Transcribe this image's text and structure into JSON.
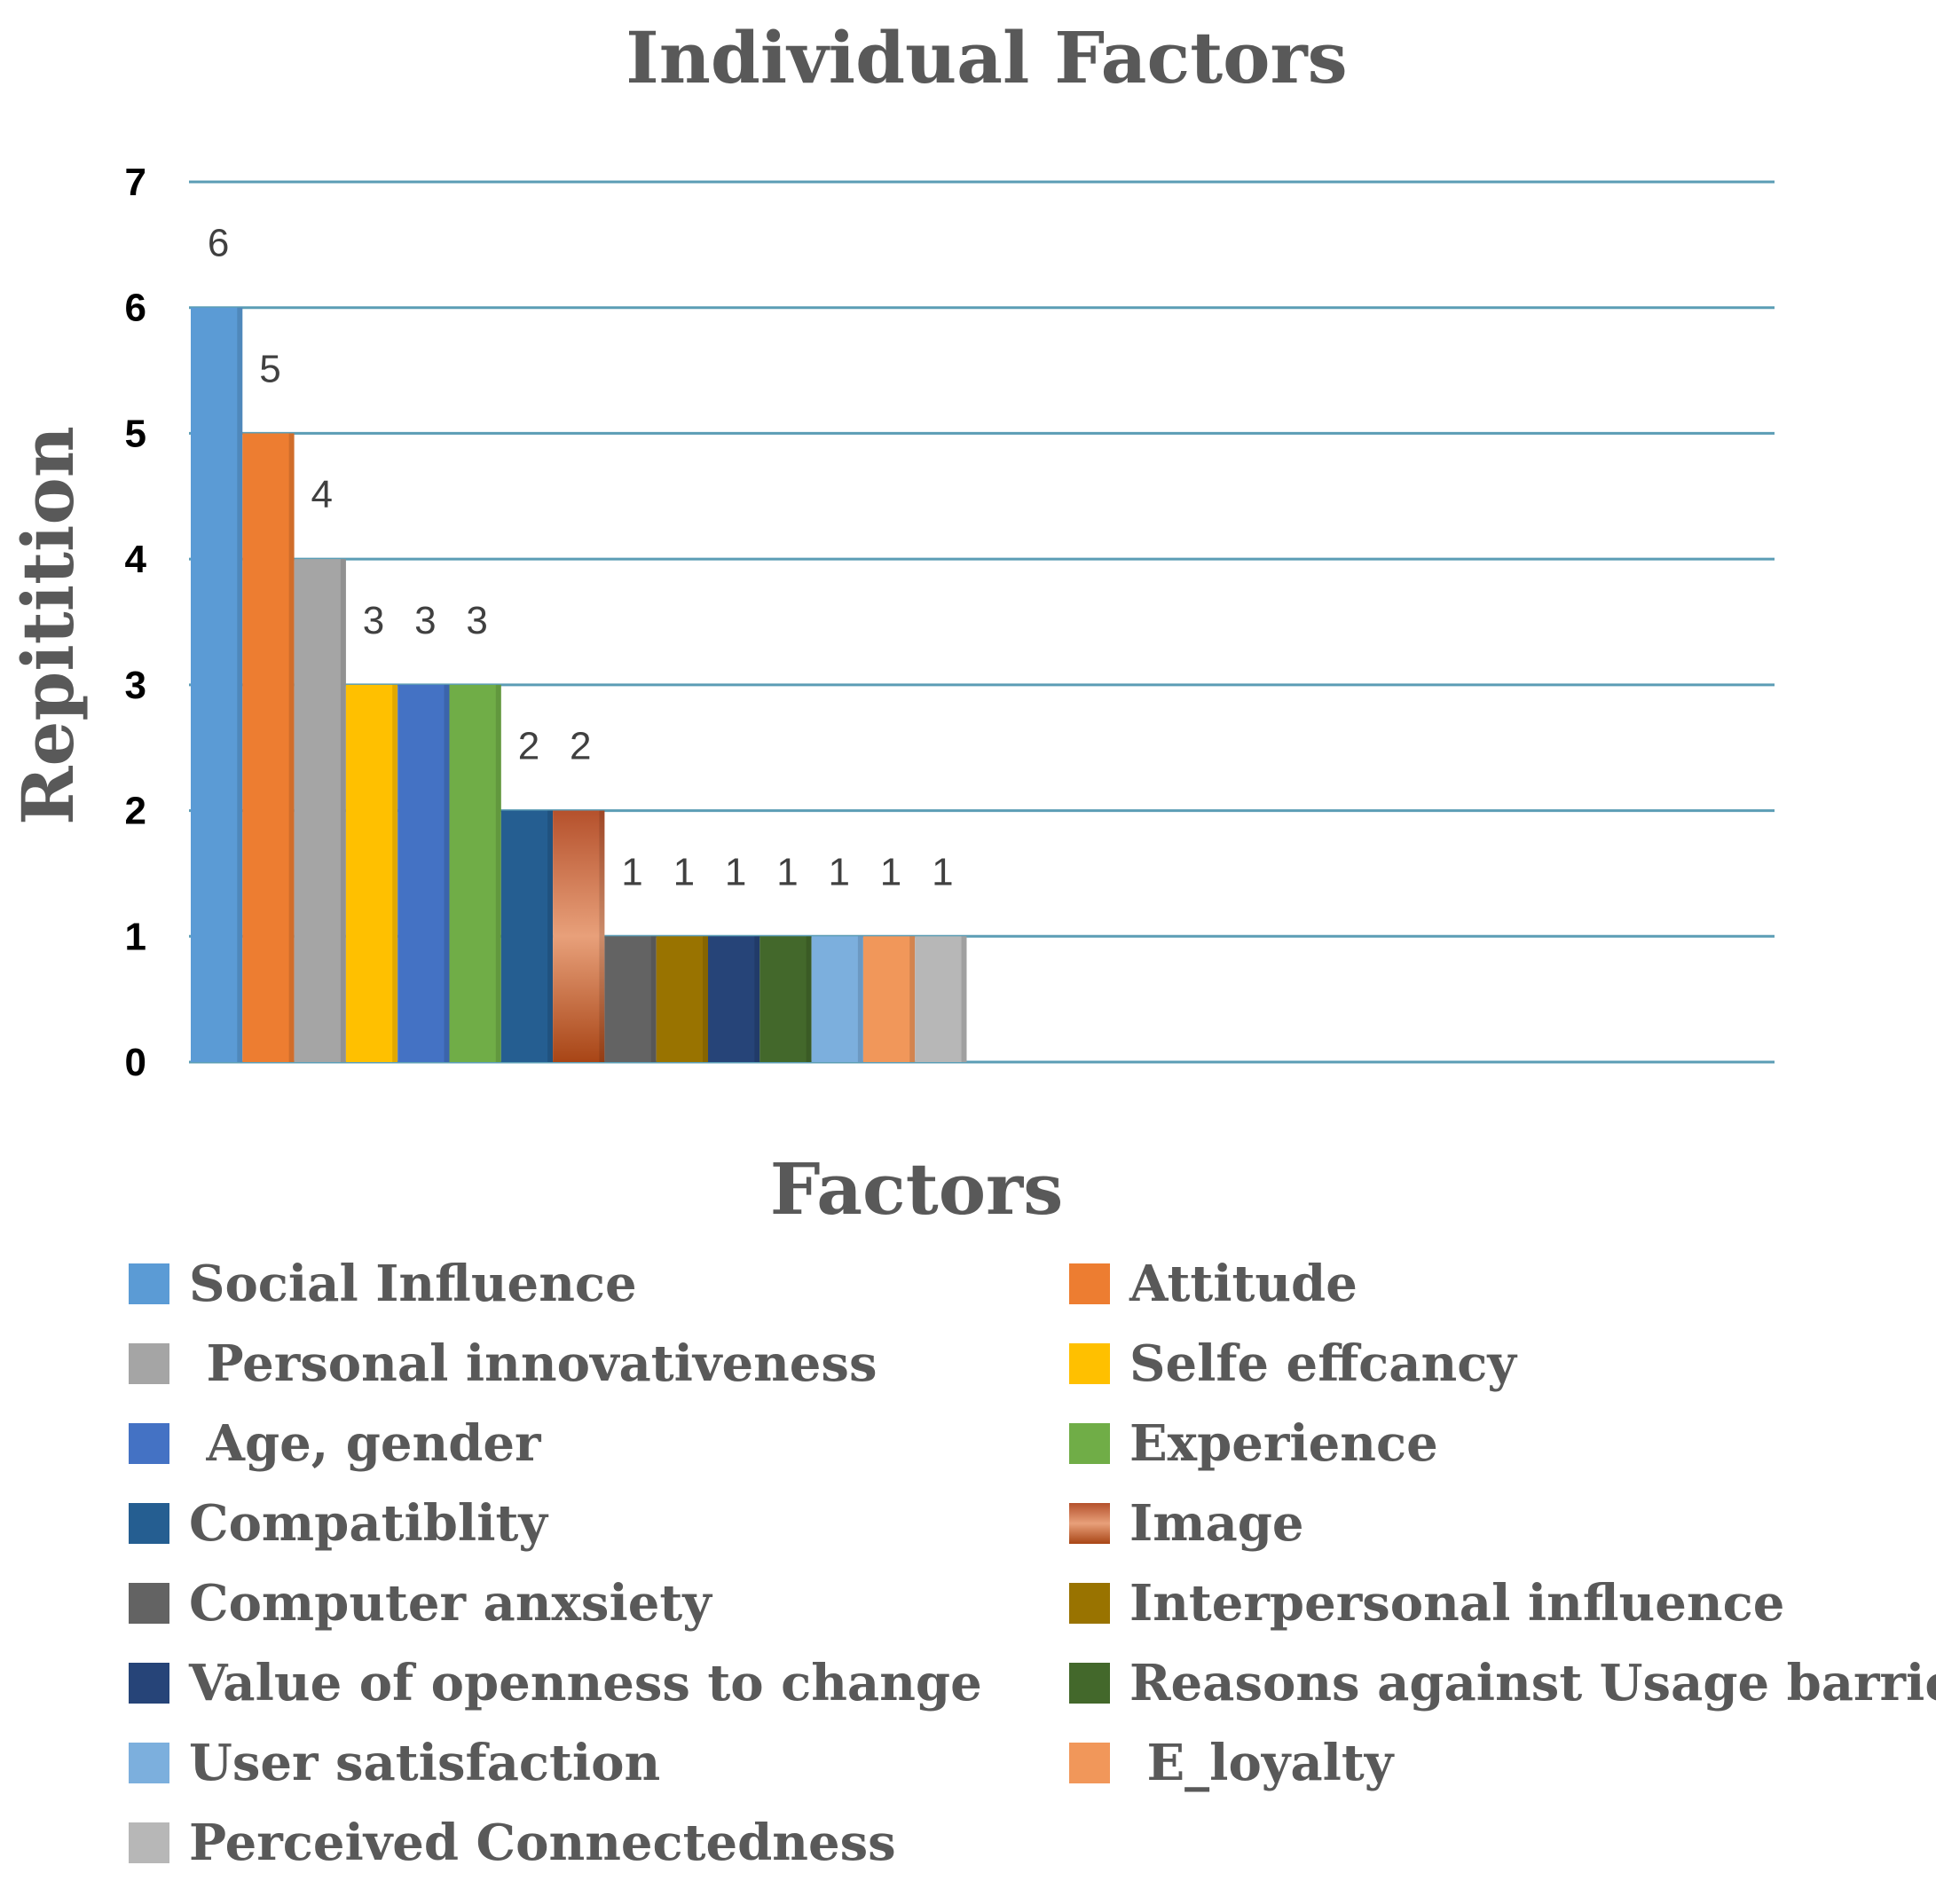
{
  "chart_data": {
    "type": "bar",
    "title": "Individual Factors",
    "xlabel": "Factors",
    "ylabel": "Repitition",
    "ylim": [
      0,
      7
    ],
    "yticks": [
      "0",
      "1",
      "2",
      "3",
      "4",
      "5",
      "6",
      "7"
    ],
    "grid": true,
    "legend_position": "bottom",
    "series": [
      {
        "name": "Social Influence",
        "value": 6,
        "color": "#5B9BD5"
      },
      {
        "name": "Attitude",
        "value": 5,
        "color": "#ED7D31"
      },
      {
        "name": " Personal innovativeness",
        "value": 4,
        "color": "#A5A5A5"
      },
      {
        "name": "Selfe effcancy",
        "value": 3,
        "color": "#FFC000"
      },
      {
        "name": " Age, gender",
        "value": 3,
        "color": "#4472C4"
      },
      {
        "name": "Experience",
        "value": 3,
        "color": "#70AD47"
      },
      {
        "name": "Compatiblity",
        "value": 2,
        "color": "#255E91"
      },
      {
        "name": "Image",
        "value": 2,
        "color": "#C0653A"
      },
      {
        "name": "Computer anxsiety",
        "value": 1,
        "color": "#636363"
      },
      {
        "name": "Interpersonal influence",
        "value": 1,
        "color": "#997300"
      },
      {
        "name": "Value of openness to change",
        "value": 1,
        "color": "#264478"
      },
      {
        "name": "Reasons against Usage barrier",
        "value": 1,
        "color": "#43682B"
      },
      {
        "name": "User satisfaction",
        "value": 1,
        "color": "#7CAFDD"
      },
      {
        "name": " E_loyalty",
        "value": 1,
        "color": "#F1975A"
      },
      {
        "name": "Perceived Connectedness",
        "value": 1,
        "color": "#B7B7B7"
      }
    ]
  }
}
